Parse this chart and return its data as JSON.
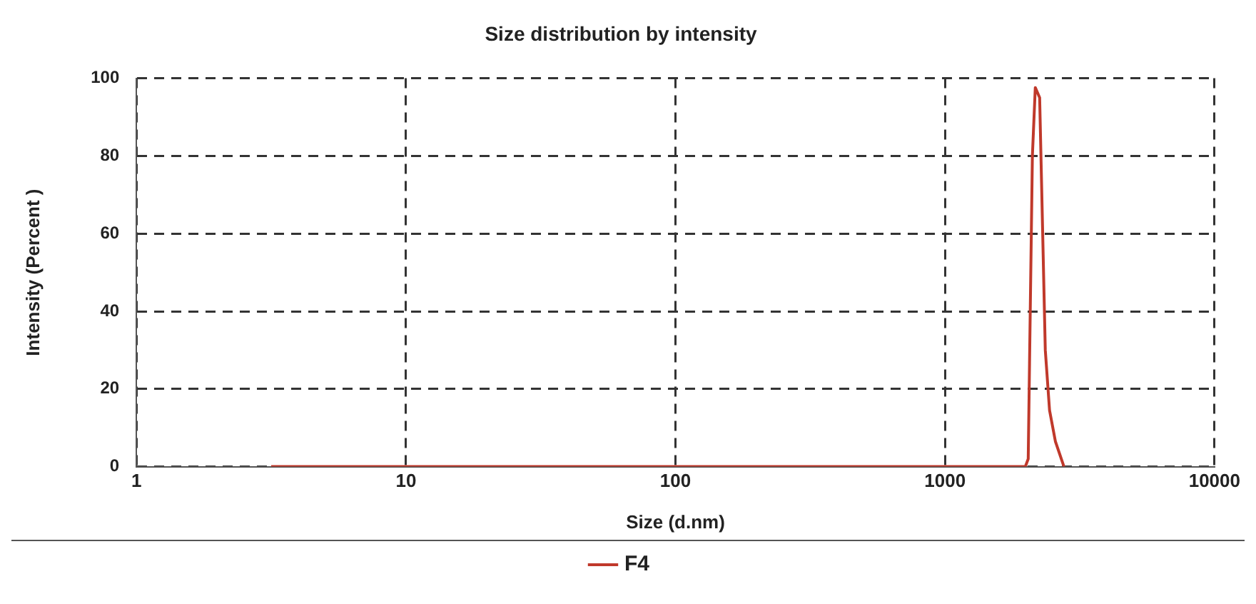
{
  "chart_data": {
    "type": "line",
    "title": "Size distribution by intensity",
    "xlabel": "Size (d.nm)",
    "ylabel": "Intensity (Percent )",
    "series": [
      {
        "name": "F4",
        "color": "#c0392b",
        "x": [
          3.16,
          1986,
          2036,
          2110,
          2163,
          2245,
          2356,
          2443,
          2568,
          2763
        ],
        "values": [
          0,
          0,
          2,
          80,
          97.6,
          95,
          30,
          14.5,
          6.5,
          0
        ]
      }
    ],
    "log": "x",
    "xlim": [
      1,
      10000
    ],
    "xticks": [
      1,
      10,
      100,
      1000,
      10000
    ],
    "ylim": [
      0,
      100
    ],
    "yticks": [
      0,
      20,
      40,
      60,
      80,
      100
    ],
    "grid": true,
    "legend": "bottom",
    "marker": "none",
    "line_style": "solid"
  }
}
